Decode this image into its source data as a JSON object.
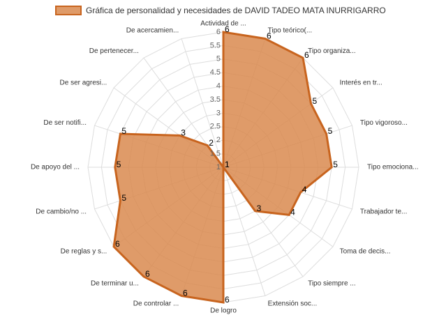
{
  "chart_data": {
    "type": "radar",
    "legend_position": "top",
    "categories": [
      "Actividad de ...",
      "Tipo teórico(...",
      "Tipo organiza...",
      "Interés en tr...",
      "Tipo vigoroso...",
      "Tipo emociona...",
      "Trabajador te...",
      "Toma de decis...",
      "Tipo siempre ...",
      "Extensión soc...",
      "De logro",
      "De controlar ...",
      "De terminar u...",
      "De reglas y s...",
      "De cambio/no ...",
      "De apoyo del ...",
      "De ser notifi...",
      "De ser agresi...",
      "De pertenecer...",
      "De acercamien..."
    ],
    "series": [
      {
        "name": "Gráfica de personalidad y necesidades de DAVID TADEO MATA INURRIGARRO",
        "color": "#c8641e",
        "fill": "#d98a4f",
        "values": [
          6,
          6,
          6,
          5,
          5,
          5,
          4,
          4,
          3,
          1,
          6,
          6,
          6,
          6,
          5,
          5,
          5,
          3,
          2,
          1
        ]
      }
    ],
    "rlim": [
      1,
      6
    ],
    "rticks": [
      1,
      1.5,
      2,
      2.5,
      3,
      3.5,
      4,
      4.5,
      5,
      5.5,
      6
    ],
    "grid": true
  }
}
